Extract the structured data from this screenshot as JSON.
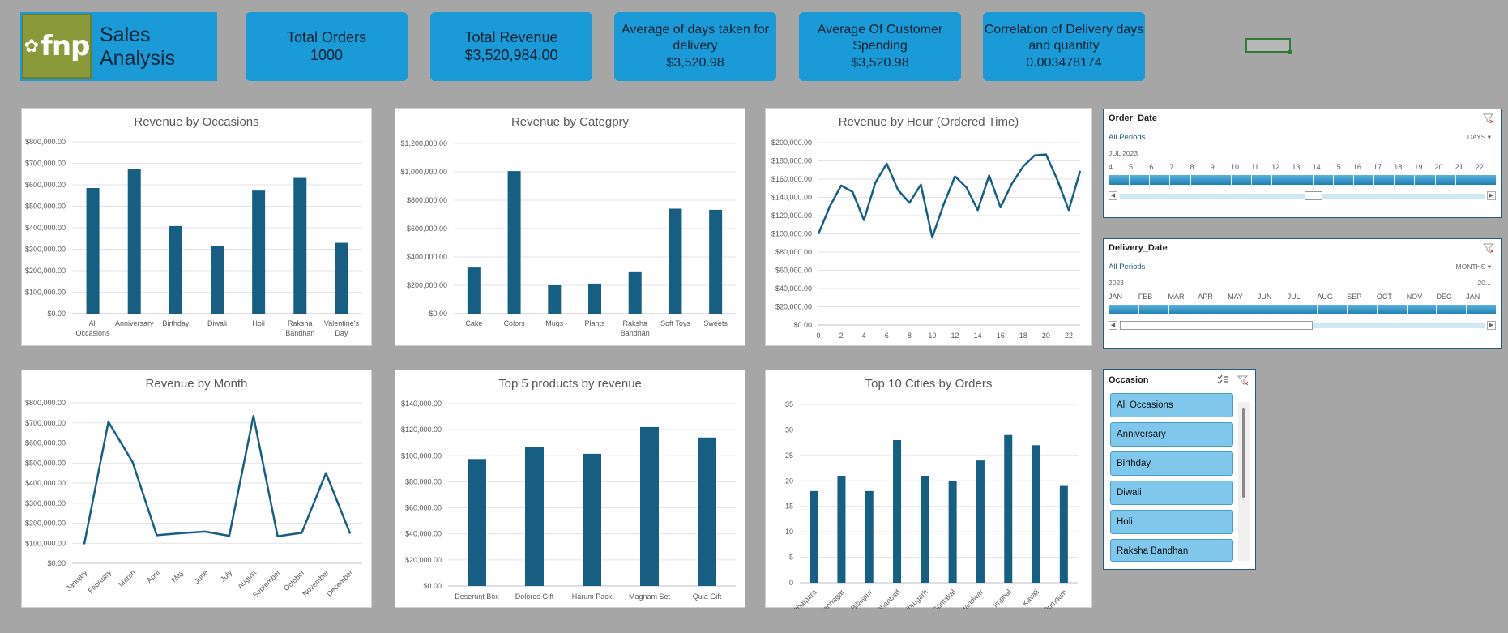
{
  "brand": {
    "logo_text": "fnp",
    "title": "Sales Analysis"
  },
  "kpis": [
    {
      "title": "Total Orders",
      "value": "1000"
    },
    {
      "title": "Total Revenue",
      "value": "$3,520,984.00"
    },
    {
      "title": "Average of days taken for delivery",
      "value": "$3,520.98"
    },
    {
      "title": "Average Of Customer Spending",
      "value": "$3,520.98"
    },
    {
      "title": "Correlation of Delivery days and quantity",
      "value": "0.003478174"
    }
  ],
  "icons": {
    "logo": "flower-icon",
    "filter": "clear-filter-icon",
    "multiselect": "multi-select-icon"
  },
  "colors": {
    "accent": "#1a9bd7",
    "series": "#175f82",
    "background": "#a6a6a6"
  },
  "charts": {
    "occasions": {
      "title": "Revenue by Occasions"
    },
    "category": {
      "title": "Revenue by Categpry"
    },
    "hour": {
      "title": "Revenue by Hour (Ordered Time)"
    },
    "month": {
      "title": "Revenue by Month"
    },
    "products": {
      "title": "Top 5 products by revenue"
    },
    "cities": {
      "title": "Top 10 Cities by Orders"
    }
  },
  "chart_data": [
    {
      "id": "occasions",
      "type": "bar",
      "title": "Revenue by Occasions",
      "categories": [
        "All Occasions",
        "Anniversary",
        "Birthday",
        "Diwali",
        "Holi",
        "Raksha Bandhan",
        "Valentine's Day"
      ],
      "values": [
        585000,
        675000,
        408000,
        315000,
        573000,
        632000,
        330000
      ],
      "ylim": [
        0,
        800000
      ],
      "yticks": [
        "$0.00",
        "$100,000.00",
        "$200,000.00",
        "$300,000.00",
        "$400,000.00",
        "$500,000.00",
        "$600,000.00",
        "$700,000.00",
        "$800,000.00"
      ],
      "grid": true
    },
    {
      "id": "category",
      "type": "bar",
      "title": "Revenue by Categpry",
      "categories": [
        "Cake",
        "Colors",
        "Mugs",
        "Plants",
        "Raksha Bandhan",
        "Soft Toys",
        "Sweets"
      ],
      "values": [
        325000,
        1005000,
        200000,
        212000,
        298000,
        740000,
        732000
      ],
      "ylim": [
        0,
        1200000
      ],
      "yticks": [
        "$0.00",
        "$200,000.00",
        "$400,000.00",
        "$600,000.00",
        "$800,000.00",
        "$1,000,000.00",
        "$1,200,000.00"
      ],
      "grid": true
    },
    {
      "id": "hour",
      "type": "line",
      "title": "Revenue by Hour (Ordered Time)",
      "x": [
        0,
        1,
        2,
        3,
        4,
        5,
        6,
        7,
        8,
        9,
        10,
        11,
        12,
        13,
        14,
        15,
        16,
        17,
        18,
        19,
        20,
        21,
        22,
        23
      ],
      "values": [
        100000,
        130000,
        153000,
        146000,
        115000,
        156000,
        177000,
        148000,
        134000,
        154000,
        96000,
        132000,
        163000,
        151000,
        126000,
        164000,
        129000,
        155000,
        174000,
        186000,
        187000,
        159000,
        126000,
        169000
      ],
      "xticks": [
        "0",
        "2",
        "4",
        "6",
        "8",
        "10",
        "12",
        "14",
        "16",
        "18",
        "20",
        "22"
      ],
      "ylim": [
        0,
        200000
      ],
      "yticks": [
        "$0.00",
        "$20,000.00",
        "$40,000.00",
        "$60,000.00",
        "$80,000.00",
        "$100,000.00",
        "$120,000.00",
        "$140,000.00",
        "$160,000.00",
        "$180,000.00",
        "$200,000.00"
      ],
      "grid": true
    },
    {
      "id": "month",
      "type": "line",
      "title": "Revenue by Month",
      "categories": [
        "January",
        "February",
        "March",
        "April",
        "May",
        "June",
        "July",
        "August",
        "September",
        "October",
        "November",
        "December"
      ],
      "values": [
        95000,
        705000,
        505000,
        140000,
        150000,
        158000,
        137000,
        735000,
        135000,
        152000,
        450000,
        148000
      ],
      "ylim": [
        0,
        800000
      ],
      "yticks": [
        "$0.00",
        "$100,000.00",
        "$200,000.00",
        "$300,000.00",
        "$400,000.00",
        "$500,000.00",
        "$600,000.00",
        "$700,000.00",
        "$800,000.00"
      ],
      "grid": true
    },
    {
      "id": "products",
      "type": "bar",
      "title": "Top 5 products by revenue",
      "categories": [
        "Deserunt Box",
        "Dolores Gift",
        "Harum Pack",
        "Magnam Set",
        "Quia Gift"
      ],
      "values": [
        97500,
        106500,
        101500,
        122000,
        114000
      ],
      "ylim": [
        0,
        140000
      ],
      "yticks": [
        "$0.00",
        "$20,000.00",
        "$40,000.00",
        "$60,000.00",
        "$80,000.00",
        "$100,000.00",
        "$120,000.00",
        "$140,000.00"
      ],
      "grid": true
    },
    {
      "id": "cities",
      "type": "bar",
      "title": "Top 10 Cities by Orders",
      "categories": [
        "Bhatpara",
        "Bidhannagar",
        "Bilaspur",
        "Dhanbad",
        "Dibrugarh",
        "Guntakal",
        "Haridwar",
        "Imphal",
        "Kavali",
        "North Dumdum"
      ],
      "values": [
        18,
        21,
        18,
        28,
        21,
        20,
        24,
        29,
        27,
        19
      ],
      "ylim": [
        0,
        35
      ],
      "yticks": [
        "0",
        "5",
        "10",
        "15",
        "20",
        "25",
        "30",
        "35"
      ],
      "grid": true
    }
  ],
  "slicers": {
    "order_date": {
      "title": "Order_Date",
      "period": "All Periods",
      "level": "DAYS",
      "year": "JUL 2023",
      "ticks": [
        "4",
        "5",
        "6",
        "7",
        "8",
        "9",
        "10",
        "11",
        "12",
        "13",
        "14",
        "15",
        "16",
        "17",
        "18",
        "19",
        "20",
        "21",
        "22"
      ]
    },
    "delivery_date": {
      "title": "Delivery_Date",
      "period": "All Periods",
      "level": "MONTHS",
      "year": "2023",
      "year_next": "20...",
      "ticks": [
        "JAN",
        "FEB",
        "MAR",
        "APR",
        "MAY",
        "JUN",
        "JUL",
        "AUG",
        "SEP",
        "OCT",
        "NOV",
        "DEC",
        "JAN"
      ]
    },
    "occasion": {
      "title": "Occasion",
      "items": [
        "All Occasions",
        "Anniversary",
        "Birthday",
        "Diwali",
        "Holi",
        "Raksha Bandhan"
      ]
    }
  }
}
